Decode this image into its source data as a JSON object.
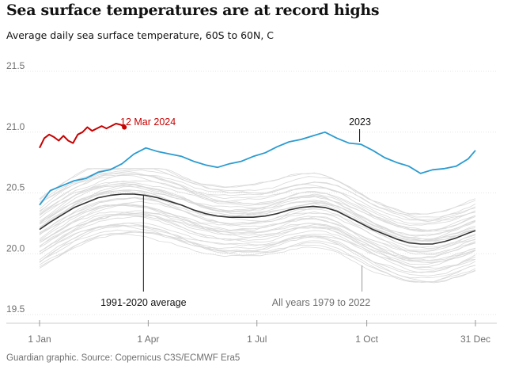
{
  "title": "Sea surface temperatures are at record highs",
  "subtitle": "Average daily sea surface temperature, 60S to 60N, C",
  "footer": "Guardian graphic. Source: Copernicus C3S/ECMWF Era5",
  "colors": {
    "record_2024": "#c70000",
    "year_2023": "#2b9bd0",
    "average": "#333333",
    "other_years": "#d9d9d9",
    "grid": "#e6e6e6",
    "text": "#121212",
    "muted": "#707070"
  },
  "chart_data": {
    "type": "line",
    "title": "Sea surface temperatures are at record highs",
    "ylabel": "Average daily sea surface temperature, 60S to 60N, C",
    "xlabel": "",
    "xlim": [
      1,
      366
    ],
    "ylim": [
      19.5,
      21.5
    ],
    "grid": true,
    "x_ticks": [
      {
        "label": "1 Jan",
        "day": 1
      },
      {
        "label": "1 Apr",
        "day": 92
      },
      {
        "label": "1 Jul",
        "day": 183
      },
      {
        "label": "1 Oct",
        "day": 275
      },
      {
        "label": "31 Dec",
        "day": 366
      }
    ],
    "y_ticks": [
      {
        "label": "21.5",
        "value": 21.5
      },
      {
        "label": "21.0",
        "value": 21.0
      },
      {
        "label": "20.5",
        "value": 20.5
      },
      {
        "label": "20.0",
        "value": 20.0
      },
      {
        "label": "19.5",
        "value": 19.5
      }
    ],
    "series": [
      {
        "name": "2024",
        "label": "12 Mar 2024",
        "x": [
          1,
          5,
          9,
          13,
          17,
          21,
          25,
          29,
          33,
          37,
          41,
          45,
          49,
          53,
          57,
          61,
          65,
          69,
          72
        ],
        "y": [
          20.87,
          20.95,
          20.98,
          20.96,
          20.93,
          20.97,
          20.93,
          20.91,
          20.98,
          21.0,
          21.04,
          21.01,
          21.03,
          21.05,
          21.03,
          21.05,
          21.07,
          21.06,
          21.04
        ]
      },
      {
        "name": "2023",
        "label": "2023",
        "x": [
          1,
          10,
          20,
          30,
          40,
          50,
          60,
          70,
          80,
          90,
          100,
          110,
          120,
          130,
          140,
          150,
          160,
          170,
          180,
          190,
          200,
          210,
          220,
          230,
          240,
          250,
          260,
          270,
          280,
          290,
          300,
          310,
          320,
          330,
          340,
          350,
          360,
          366
        ],
        "y": [
          20.4,
          20.52,
          20.56,
          20.6,
          20.62,
          20.67,
          20.69,
          20.74,
          20.82,
          20.87,
          20.84,
          20.82,
          20.8,
          20.76,
          20.73,
          20.71,
          20.74,
          20.76,
          20.8,
          20.83,
          20.88,
          20.92,
          20.94,
          20.97,
          21.0,
          20.95,
          20.91,
          20.9,
          20.85,
          20.79,
          20.75,
          20.72,
          20.66,
          20.69,
          20.7,
          20.72,
          20.78,
          20.85
        ]
      },
      {
        "name": "1991-2020 average",
        "label": "1991-2020 average",
        "x": [
          1,
          10,
          20,
          30,
          40,
          50,
          60,
          70,
          80,
          90,
          100,
          110,
          120,
          130,
          140,
          150,
          160,
          170,
          180,
          190,
          200,
          210,
          220,
          230,
          240,
          250,
          260,
          270,
          280,
          290,
          300,
          310,
          320,
          330,
          340,
          350,
          360,
          366
        ],
        "y": [
          20.2,
          20.26,
          20.32,
          20.38,
          20.42,
          20.46,
          20.48,
          20.49,
          20.49,
          20.48,
          20.46,
          20.43,
          20.4,
          20.36,
          20.33,
          20.31,
          20.3,
          20.3,
          20.3,
          20.31,
          20.33,
          20.36,
          20.38,
          20.39,
          20.38,
          20.35,
          20.3,
          20.25,
          20.2,
          20.16,
          20.12,
          20.09,
          20.08,
          20.08,
          20.1,
          20.13,
          20.17,
          20.19
        ]
      }
    ],
    "annotations": [
      {
        "text": "12 Mar 2024",
        "series": "2024"
      },
      {
        "text": "2023",
        "series": "2023"
      },
      {
        "text": "1991-2020 average",
        "series": "1991-2020 average"
      },
      {
        "text": "All years 1979 to 2022",
        "series": "All years 1979 to 2022"
      }
    ],
    "background_series_label": "All years 1979 to 2022",
    "background_series_range": [
      19.7,
      20.7
    ]
  }
}
